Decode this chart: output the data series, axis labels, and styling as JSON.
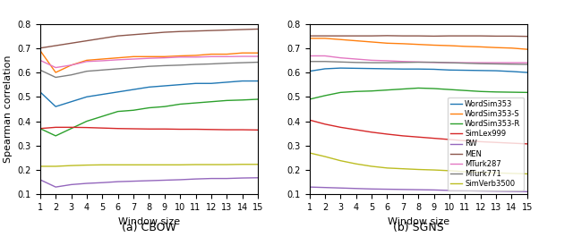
{
  "x": [
    1,
    2,
    3,
    4,
    5,
    6,
    7,
    8,
    9,
    10,
    11,
    12,
    13,
    14,
    15
  ],
  "cbow": {
    "WordSim353": [
      0.52,
      0.46,
      0.48,
      0.5,
      0.51,
      0.52,
      0.53,
      0.54,
      0.545,
      0.55,
      0.555,
      0.555,
      0.56,
      0.565,
      0.565
    ],
    "WordSim353-S": [
      0.69,
      0.6,
      0.63,
      0.65,
      0.655,
      0.66,
      0.665,
      0.665,
      0.665,
      0.668,
      0.67,
      0.675,
      0.675,
      0.68,
      0.68
    ],
    "WordSim353-R": [
      0.37,
      0.34,
      0.37,
      0.4,
      0.42,
      0.44,
      0.445,
      0.455,
      0.46,
      0.47,
      0.475,
      0.48,
      0.485,
      0.487,
      0.49
    ],
    "SimLex999": [
      0.37,
      0.375,
      0.375,
      0.374,
      0.372,
      0.37,
      0.369,
      0.368,
      0.368,
      0.367,
      0.367,
      0.366,
      0.365,
      0.365,
      0.364
    ],
    "RW": [
      0.16,
      0.13,
      0.14,
      0.145,
      0.148,
      0.152,
      0.154,
      0.156,
      0.158,
      0.16,
      0.163,
      0.165,
      0.165,
      0.167,
      0.168
    ],
    "MEN": [
      0.7,
      0.71,
      0.72,
      0.73,
      0.74,
      0.75,
      0.755,
      0.76,
      0.765,
      0.768,
      0.77,
      0.772,
      0.774,
      0.776,
      0.778
    ],
    "MTurk287": [
      0.65,
      0.62,
      0.63,
      0.645,
      0.648,
      0.652,
      0.655,
      0.658,
      0.66,
      0.663,
      0.663,
      0.665,
      0.665,
      0.666,
      0.666
    ],
    "MTurk771": [
      0.61,
      0.58,
      0.59,
      0.605,
      0.61,
      0.615,
      0.62,
      0.625,
      0.628,
      0.63,
      0.633,
      0.635,
      0.638,
      0.64,
      0.642
    ],
    "SimVerb3500": [
      0.215,
      0.215,
      0.218,
      0.22,
      0.221,
      0.221,
      0.221,
      0.221,
      0.221,
      0.221,
      0.222,
      0.222,
      0.222,
      0.223,
      0.223
    ]
  },
  "sgns": {
    "WordSim353": [
      0.605,
      0.615,
      0.618,
      0.617,
      0.616,
      0.615,
      0.614,
      0.614,
      0.613,
      0.61,
      0.609,
      0.608,
      0.607,
      0.604,
      0.6
    ],
    "WordSim353-S": [
      0.74,
      0.74,
      0.735,
      0.73,
      0.725,
      0.72,
      0.718,
      0.715,
      0.712,
      0.71,
      0.707,
      0.705,
      0.702,
      0.7,
      0.695
    ],
    "WordSim353-R": [
      0.49,
      0.505,
      0.518,
      0.522,
      0.524,
      0.528,
      0.532,
      0.536,
      0.534,
      0.53,
      0.526,
      0.522,
      0.52,
      0.519,
      0.518
    ],
    "SimLex999": [
      0.405,
      0.388,
      0.375,
      0.365,
      0.355,
      0.347,
      0.34,
      0.335,
      0.33,
      0.325,
      0.32,
      0.316,
      0.313,
      0.31,
      0.307
    ],
    "RW": [
      0.13,
      0.128,
      0.126,
      0.124,
      0.122,
      0.121,
      0.12,
      0.119,
      0.118,
      0.116,
      0.115,
      0.114,
      0.113,
      0.112,
      0.111
    ],
    "MEN": [
      0.75,
      0.75,
      0.75,
      0.75,
      0.75,
      0.751,
      0.75,
      0.75,
      0.749,
      0.75,
      0.75,
      0.75,
      0.749,
      0.749,
      0.748
    ],
    "MTurk287": [
      0.668,
      0.668,
      0.66,
      0.655,
      0.65,
      0.648,
      0.645,
      0.643,
      0.641,
      0.64,
      0.64,
      0.64,
      0.64,
      0.64,
      0.64
    ],
    "MTurk771": [
      0.645,
      0.645,
      0.643,
      0.641,
      0.64,
      0.64,
      0.641,
      0.642,
      0.642,
      0.64,
      0.638,
      0.636,
      0.635,
      0.634,
      0.633
    ],
    "SimVerb3500": [
      0.27,
      0.255,
      0.238,
      0.225,
      0.215,
      0.208,
      0.205,
      0.202,
      0.2,
      0.197,
      0.193,
      0.19,
      0.188,
      0.186,
      0.184
    ]
  },
  "colors": {
    "WordSim353": "#1f77b4",
    "WordSim353-S": "#ff7f0e",
    "WordSim353-R": "#2ca02c",
    "SimLex999": "#d62728",
    "RW": "#9467bd",
    "MEN": "#8c564b",
    "MTurk287": "#e377c2",
    "MTurk771": "#7f7f7f",
    "SimVerb3500": "#bcbd22"
  },
  "ylim": [
    0.1,
    0.8
  ],
  "yticks": [
    0.1,
    0.2,
    0.3,
    0.4,
    0.5,
    0.6,
    0.7,
    0.8
  ],
  "xlabel": "Window size",
  "ylabel": "Spearman correlation",
  "caption_a": "(a) CBOW",
  "caption_b": "(b) SGNS"
}
